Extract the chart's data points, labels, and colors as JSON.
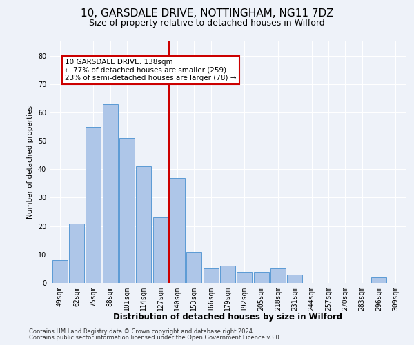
{
  "title1": "10, GARSDALE DRIVE, NOTTINGHAM, NG11 7DZ",
  "title2": "Size of property relative to detached houses in Wilford",
  "xlabel": "Distribution of detached houses by size in Wilford",
  "ylabel": "Number of detached properties",
  "categories": [
    "49sqm",
    "62sqm",
    "75sqm",
    "88sqm",
    "101sqm",
    "114sqm",
    "127sqm",
    "140sqm",
    "153sqm",
    "166sqm",
    "179sqm",
    "192sqm",
    "205sqm",
    "218sqm",
    "231sqm",
    "244sqm",
    "257sqm",
    "270sqm",
    "283sqm",
    "296sqm",
    "309sqm"
  ],
  "values": [
    8,
    21,
    55,
    63,
    51,
    41,
    23,
    37,
    11,
    5,
    6,
    4,
    4,
    5,
    3,
    0,
    0,
    0,
    0,
    2,
    0
  ],
  "bar_color": "#aec6e8",
  "bar_edgecolor": "#5b9bd5",
  "highlight_index": 7,
  "highlight_line_color": "#cc0000",
  "annotation_title": "10 GARSDALE DRIVE: 138sqm",
  "annotation_line1": "← 77% of detached houses are smaller (259)",
  "annotation_line2": "23% of semi-detached houses are larger (78) →",
  "annotation_box_color": "#ffffff",
  "annotation_box_edgecolor": "#cc0000",
  "ylim": [
    0,
    85
  ],
  "yticks": [
    0,
    10,
    20,
    30,
    40,
    50,
    60,
    70,
    80
  ],
  "footer1": "Contains HM Land Registry data © Crown copyright and database right 2024.",
  "footer2": "Contains public sector information licensed under the Open Government Licence v3.0.",
  "bg_color": "#eef2f9",
  "grid_color": "#ffffff",
  "title1_fontsize": 11,
  "title2_fontsize": 9,
  "xlabel_fontsize": 8.5,
  "ylabel_fontsize": 7.5,
  "tick_fontsize": 7,
  "footer_fontsize": 6.0,
  "annotation_fontsize": 7.5
}
